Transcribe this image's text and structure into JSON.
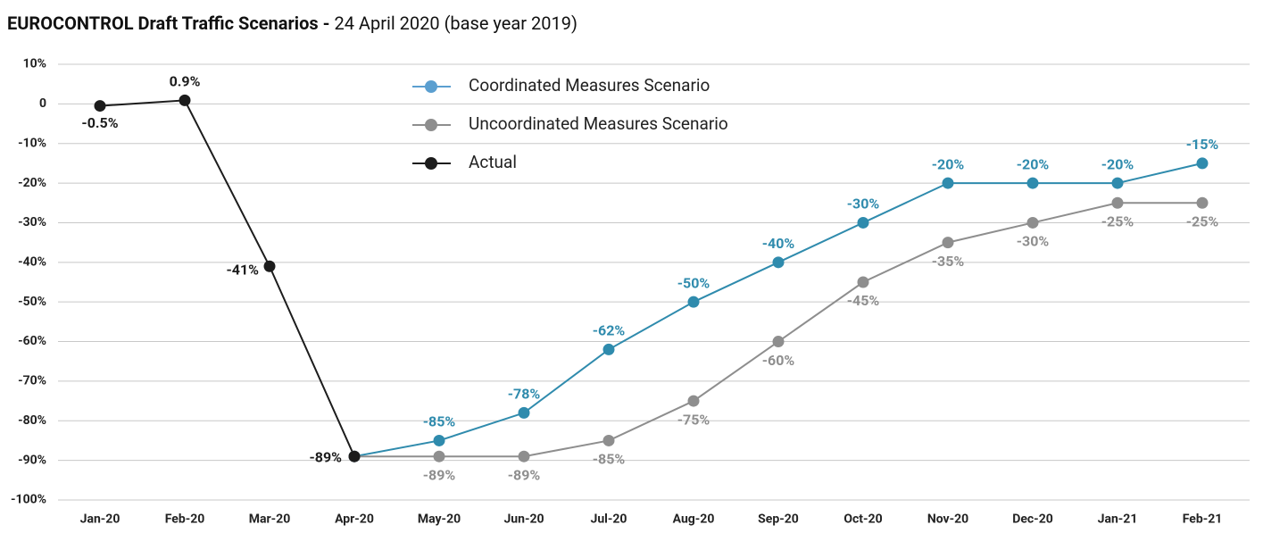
{
  "chart_data": {
    "type": "line",
    "title": "EUROCONTROL Draft Traffic Scenarios -",
    "subtitle": "24 April 2020 (base year 2019)",
    "categories": [
      "Jan-20",
      "Feb-20",
      "Mar-20",
      "Apr-20",
      "May-20",
      "Jun-20",
      "Jul-20",
      "Aug-20",
      "Sep-20",
      "Oct-20",
      "Nov-20",
      "Dec-20",
      "Jan-21",
      "Feb-21"
    ],
    "ylim": [
      -100,
      10
    ],
    "yticks": [
      {
        "value": 10,
        "label": "10%"
      },
      0,
      {
        "value": -10,
        "label": "-10%"
      },
      {
        "value": -20,
        "label": "-20%"
      },
      {
        "value": -30,
        "label": "-30%"
      },
      {
        "value": -40,
        "label": "-40%"
      },
      {
        "value": -50,
        "label": "-50%"
      },
      {
        "value": -60,
        "label": "-60%"
      },
      {
        "value": -70,
        "label": "-70%"
      },
      {
        "value": -80,
        "label": "-80%"
      },
      {
        "value": -90,
        "label": "-90%"
      },
      {
        "value": -100,
        "label": "-100%"
      }
    ],
    "grid": true,
    "series": [
      {
        "name": "Coordinated Measures Scenario",
        "color": "#2f8bad",
        "values": [
          null,
          null,
          null,
          -89,
          -85,
          -78,
          -62,
          -50,
          -40,
          -30,
          -20,
          -20,
          -20,
          -15
        ],
        "value_labels": [
          null,
          null,
          null,
          null,
          "-85%",
          "-78%",
          "-62%",
          "-50%",
          "-40%",
          "-30%",
          "-20%",
          "-20%",
          "-20%",
          "-15%"
        ]
      },
      {
        "name": "Uncoordinated Measures Scenario",
        "color": "#8e8e8e",
        "values": [
          null,
          null,
          null,
          -89,
          -89,
          -89,
          -85,
          -75,
          -60,
          -45,
          -35,
          -30,
          -25,
          -25
        ],
        "value_labels": [
          null,
          null,
          null,
          null,
          "-89%",
          "-89%",
          "-85%",
          "-75%",
          "-60%",
          "-45%",
          "-35%",
          "-30%",
          "-25%",
          "-25%"
        ]
      },
      {
        "name": "Actual",
        "color": "#1c1c1c",
        "values": [
          -0.5,
          0.9,
          -41,
          -89,
          null,
          null,
          null,
          null,
          null,
          null,
          null,
          null,
          null,
          null
        ],
        "value_labels": [
          "-0.5%",
          "0.9%",
          "-41%",
          "-89%",
          null,
          null,
          null,
          null,
          null,
          null,
          null,
          null,
          null,
          null
        ]
      }
    ]
  }
}
